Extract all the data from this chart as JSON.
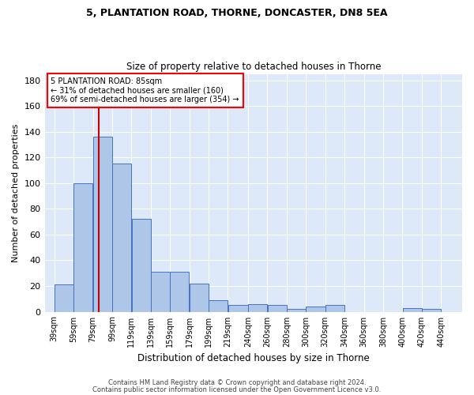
{
  "title1": "5, PLANTATION ROAD, THORNE, DONCASTER, DN8 5EA",
  "title2": "Size of property relative to detached houses in Thorne",
  "xlabel": "Distribution of detached houses by size in Thorne",
  "ylabel": "Number of detached properties",
  "footer1": "Contains HM Land Registry data © Crown copyright and database right 2024.",
  "footer2": "Contains public sector information licensed under the Open Government Licence v3.0.",
  "annotation_title": "5 PLANTATION ROAD: 85sqm",
  "annotation_line1": "← 31% of detached houses are smaller (160)",
  "annotation_line2": "69% of semi-detached houses are larger (354) →",
  "property_size": 85,
  "bar_left_edges": [
    39,
    59,
    79,
    99,
    119,
    139,
    159,
    179,
    199,
    219,
    240,
    260,
    280,
    300,
    320,
    340,
    360,
    380,
    400,
    420
  ],
  "bar_widths": [
    20,
    20,
    20,
    20,
    20,
    20,
    20,
    20,
    20,
    21,
    20,
    20,
    20,
    20,
    20,
    20,
    20,
    20,
    20,
    20
  ],
  "bar_heights": [
    21,
    100,
    136,
    115,
    72,
    31,
    31,
    22,
    9,
    5,
    6,
    5,
    2,
    4,
    5,
    0,
    0,
    0,
    3,
    2
  ],
  "bar_color": "#aec6e8",
  "bar_edge_color": "#4472c4",
  "red_line_x": 85,
  "red_line_color": "#cc0000",
  "background_color": "#dde8f8",
  "grid_color": "#ffffff",
  "fig_background": "#ffffff",
  "ylim": [
    0,
    185
  ],
  "yticks": [
    0,
    20,
    40,
    60,
    80,
    100,
    120,
    140,
    160,
    180
  ],
  "xtick_labels": [
    "39sqm",
    "59sqm",
    "79sqm",
    "99sqm",
    "119sqm",
    "139sqm",
    "159sqm",
    "179sqm",
    "199sqm",
    "219sqm",
    "240sqm",
    "260sqm",
    "280sqm",
    "300sqm",
    "320sqm",
    "340sqm",
    "360sqm",
    "380sqm",
    "400sqm",
    "420sqm",
    "440sqm"
  ],
  "xtick_positions": [
    39,
    59,
    79,
    99,
    119,
    139,
    159,
    179,
    199,
    219,
    240,
    260,
    280,
    300,
    320,
    340,
    360,
    380,
    400,
    420,
    440
  ]
}
